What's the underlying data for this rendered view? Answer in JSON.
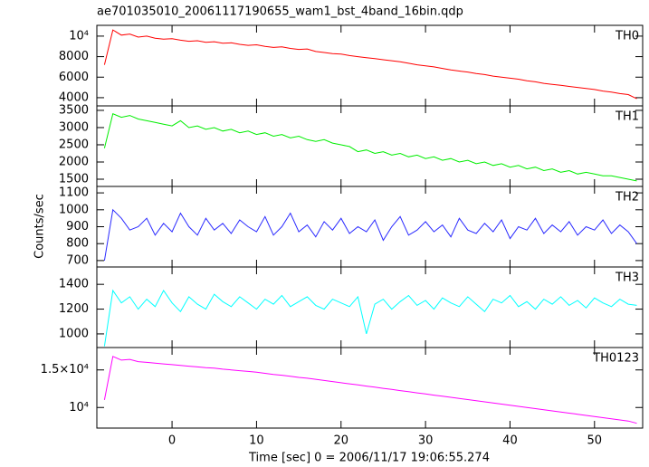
{
  "title": "ae701035010_20061117190655_wam1_bst_4band_16bin.qdp",
  "xlabel": "Time [sec] 0 = 2006/11/17 19:06:55.274",
  "ylabel": "Counts/sec",
  "chart_data": [
    {
      "type": "line",
      "x": [
        -8,
        -7,
        -6,
        -5,
        -4,
        -3,
        -2,
        -1,
        0,
        1,
        2,
        3,
        4,
        5,
        6,
        7,
        8,
        9,
        10,
        11,
        12,
        13,
        14,
        15,
        16,
        17,
        18,
        19,
        20,
        21,
        22,
        23,
        24,
        25,
        26,
        27,
        28,
        29,
        30,
        31,
        32,
        33,
        34,
        35,
        36,
        37,
        38,
        39,
        40,
        41,
        42,
        43,
        44,
        45,
        46,
        47,
        48,
        49,
        50,
        51,
        52,
        53,
        54,
        55
      ],
      "series": [
        {
          "name": "TH0",
          "color": "#ff0000",
          "values": [
            7200,
            10600,
            10100,
            10200,
            9900,
            10000,
            9800,
            9700,
            9750,
            9600,
            9500,
            9550,
            9400,
            9450,
            9300,
            9350,
            9200,
            9100,
            9150,
            9000,
            8900,
            8950,
            8800,
            8700,
            8750,
            8500,
            8400,
            8300,
            8250,
            8100,
            8000,
            7900,
            7800,
            7700,
            7600,
            7500,
            7350,
            7200,
            7100,
            7000,
            6850,
            6700,
            6600,
            6500,
            6350,
            6250,
            6100,
            6000,
            5900,
            5800,
            5650,
            5550,
            5400,
            5300,
            5200,
            5100,
            5000,
            4900,
            4800,
            4650,
            4550,
            4400,
            4300,
            3900
          ]
        }
      ],
      "xlim": [
        -8.9,
        55.7
      ],
      "xticks": [
        0,
        10,
        20,
        30,
        40,
        50
      ],
      "ylim": [
        3200,
        11050
      ],
      "yticks": [
        4000,
        6000,
        8000,
        {
          "value": 10000,
          "label": "10⁴"
        }
      ]
    },
    {
      "type": "line",
      "x": [
        -8,
        -7,
        -6,
        -5,
        -4,
        -3,
        -2,
        -1,
        0,
        1,
        2,
        3,
        4,
        5,
        6,
        7,
        8,
        9,
        10,
        11,
        12,
        13,
        14,
        15,
        16,
        17,
        18,
        19,
        20,
        21,
        22,
        23,
        24,
        25,
        26,
        27,
        28,
        29,
        30,
        31,
        32,
        33,
        34,
        35,
        36,
        37,
        38,
        39,
        40,
        41,
        42,
        43,
        44,
        45,
        46,
        47,
        48,
        49,
        50,
        51,
        52,
        53,
        54,
        55
      ],
      "series": [
        {
          "name": "TH1",
          "color": "#00ee00",
          "values": [
            2400,
            3400,
            3300,
            3350,
            3250,
            3200,
            3150,
            3100,
            3050,
            3200,
            3000,
            3050,
            2950,
            3000,
            2900,
            2950,
            2850,
            2900,
            2800,
            2850,
            2750,
            2800,
            2700,
            2750,
            2650,
            2600,
            2650,
            2550,
            2500,
            2450,
            2300,
            2350,
            2250,
            2300,
            2200,
            2250,
            2150,
            2200,
            2100,
            2150,
            2050,
            2100,
            2000,
            2050,
            1950,
            2000,
            1900,
            1950,
            1850,
            1900,
            1800,
            1850,
            1750,
            1800,
            1700,
            1750,
            1650,
            1700,
            1650,
            1600,
            1600,
            1550,
            1500,
            1450
          ]
        }
      ],
      "xlim": [
        -8.9,
        55.7
      ],
      "xticks": [
        0,
        10,
        20,
        30,
        40,
        50
      ],
      "ylim": [
        1290,
        3630
      ],
      "yticks": [
        1500,
        2000,
        2500,
        3000,
        3500
      ]
    },
    {
      "type": "line",
      "x": [
        -8,
        -7,
        -6,
        -5,
        -4,
        -3,
        -2,
        -1,
        0,
        1,
        2,
        3,
        4,
        5,
        6,
        7,
        8,
        9,
        10,
        11,
        12,
        13,
        14,
        15,
        16,
        17,
        18,
        19,
        20,
        21,
        22,
        23,
        24,
        25,
        26,
        27,
        28,
        29,
        30,
        31,
        32,
        33,
        34,
        35,
        36,
        37,
        38,
        39,
        40,
        41,
        42,
        43,
        44,
        45,
        46,
        47,
        48,
        49,
        50,
        51,
        52,
        53,
        54,
        55
      ],
      "series": [
        {
          "name": "TH2",
          "color": "#2a2aff",
          "values": [
            700,
            1000,
            950,
            880,
            900,
            950,
            850,
            920,
            870,
            980,
            900,
            850,
            950,
            880,
            920,
            860,
            940,
            900,
            870,
            960,
            850,
            900,
            980,
            870,
            910,
            840,
            930,
            880,
            950,
            860,
            900,
            870,
            940,
            820,
            900,
            960,
            850,
            880,
            930,
            870,
            910,
            840,
            950,
            880,
            860,
            920,
            870,
            940,
            830,
            900,
            880,
            950,
            860,
            910,
            870,
            930,
            850,
            900,
            880,
            940,
            860,
            910,
            870,
            800
          ]
        }
      ],
      "xlim": [
        -8.9,
        55.7
      ],
      "xticks": [
        0,
        10,
        20,
        30,
        40,
        50
      ],
      "ylim": [
        662,
        1138
      ],
      "yticks": [
        700,
        800,
        900,
        1000,
        1100
      ]
    },
    {
      "type": "line",
      "x": [
        -8,
        -7,
        -6,
        -5,
        -4,
        -3,
        -2,
        -1,
        0,
        1,
        2,
        3,
        4,
        5,
        6,
        7,
        8,
        9,
        10,
        11,
        12,
        13,
        14,
        15,
        16,
        17,
        18,
        19,
        20,
        21,
        22,
        23,
        24,
        25,
        26,
        27,
        28,
        29,
        30,
        31,
        32,
        33,
        34,
        35,
        36,
        37,
        38,
        39,
        40,
        41,
        42,
        43,
        44,
        45,
        46,
        47,
        48,
        49,
        50,
        51,
        52,
        53,
        54,
        55
      ],
      "series": [
        {
          "name": "TH3",
          "color": "#00ffff",
          "values": [
            900,
            1350,
            1250,
            1300,
            1200,
            1280,
            1220,
            1350,
            1250,
            1180,
            1300,
            1240,
            1200,
            1320,
            1260,
            1220,
            1300,
            1250,
            1200,
            1280,
            1240,
            1310,
            1220,
            1260,
            1300,
            1230,
            1200,
            1280,
            1250,
            1220,
            1300,
            1000,
            1240,
            1280,
            1200,
            1260,
            1310,
            1230,
            1270,
            1200,
            1290,
            1250,
            1220,
            1300,
            1240,
            1180,
            1280,
            1250,
            1310,
            1220,
            1260,
            1200,
            1280,
            1240,
            1300,
            1230,
            1270,
            1210,
            1290,
            1250,
            1220,
            1280,
            1240,
            1230
          ]
        }
      ],
      "xlim": [
        -8.9,
        55.7
      ],
      "xticks": [
        0,
        10,
        20,
        30,
        40,
        50
      ],
      "ylim": [
        890,
        1540
      ],
      "yticks": [
        1000,
        1200,
        1400
      ]
    },
    {
      "type": "line",
      "x": [
        -8,
        -7,
        -6,
        -5,
        -4,
        -3,
        -2,
        -1,
        0,
        1,
        2,
        3,
        4,
        5,
        6,
        7,
        8,
        9,
        10,
        11,
        12,
        13,
        14,
        15,
        16,
        17,
        18,
        19,
        20,
        21,
        22,
        23,
        24,
        25,
        26,
        27,
        28,
        29,
        30,
        31,
        32,
        33,
        34,
        35,
        36,
        37,
        38,
        39,
        40,
        41,
        42,
        43,
        44,
        45,
        46,
        47,
        48,
        49,
        50,
        51,
        52,
        53,
        54,
        55
      ],
      "series": [
        {
          "name": "TH0123",
          "color": "#ff00ff",
          "values": [
            11000,
            16800,
            16300,
            16400,
            16100,
            16000,
            15900,
            15800,
            15700,
            15600,
            15500,
            15400,
            15300,
            15250,
            15100,
            15000,
            14900,
            14800,
            14700,
            14550,
            14400,
            14300,
            14150,
            14000,
            13900,
            13750,
            13600,
            13450,
            13300,
            13150,
            13000,
            12850,
            12700,
            12550,
            12400,
            12250,
            12100,
            11950,
            11800,
            11650,
            11500,
            11350,
            11200,
            11050,
            10900,
            10750,
            10600,
            10450,
            10300,
            10150,
            10000,
            9850,
            9700,
            9550,
            9400,
            9250,
            9100,
            8950,
            8800,
            8650,
            8500,
            8350,
            8200,
            7900
          ]
        }
      ],
      "xlim": [
        -8.9,
        55.7
      ],
      "xticks": [
        0,
        10,
        20,
        30,
        40,
        50
      ],
      "ylim": [
        7260,
        17980
      ],
      "yticks": [
        {
          "value": 10000,
          "label": "10⁴"
        },
        {
          "value": 15000,
          "label": "1.5×10⁴"
        }
      ]
    }
  ]
}
